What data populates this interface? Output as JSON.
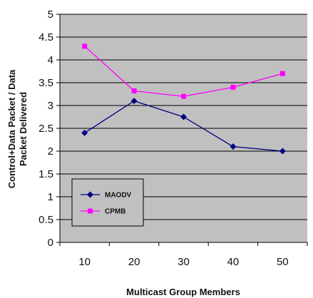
{
  "chart_data": {
    "type": "line",
    "title": "",
    "xlabel": "Multicast Group Members",
    "ylabel": [
      "Control+Data Packet /  Data",
      "Packet Delivered"
    ],
    "categories": [
      "10",
      "20",
      "30",
      "40",
      "50"
    ],
    "y_ticks": [
      "0",
      "0.5",
      "1",
      "1.5",
      "2",
      "2.5",
      "3",
      "3.5",
      "4",
      "4.5",
      "5"
    ],
    "ylim": [
      0,
      5
    ],
    "grid": true,
    "legend_position": "lower-left",
    "plot_background": "#c0c0c0",
    "series": [
      {
        "name": "MAODV",
        "color": "#000080",
        "marker": "diamond",
        "values": [
          2.4,
          3.1,
          2.75,
          2.1,
          2.0
        ]
      },
      {
        "name": "CPMB",
        "color": "#ff00ff",
        "marker": "square",
        "values": [
          4.3,
          3.32,
          3.2,
          3.4,
          3.7
        ]
      }
    ]
  }
}
